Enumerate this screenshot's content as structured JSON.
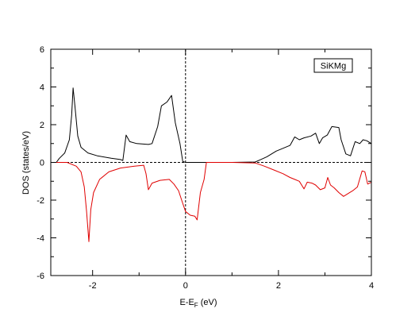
{
  "chart_data": {
    "type": "line",
    "title": "",
    "xlabel_main": "E-E",
    "xlabel_sub": "F",
    "xlabel_unit": " (eV)",
    "ylabel": "DOS (states/eV)",
    "xlim": [
      -2.9,
      4
    ],
    "ylim": [
      -6,
      6
    ],
    "xticks": [
      -2,
      0,
      2,
      4
    ],
    "xtick_labels": [
      "-2",
      "0",
      "2",
      "4"
    ],
    "yticks": [
      -6,
      -4,
      -2,
      0,
      2,
      4,
      6
    ],
    "ytick_labels": [
      "-6",
      "-4",
      "-2",
      "0",
      "2",
      "4",
      "6"
    ],
    "grid": false,
    "legend": {
      "text": "SiKMg",
      "placement": "top-right"
    },
    "reference_lines": {
      "x_zero": "dashed",
      "y_zero": "dashed"
    },
    "series": [
      {
        "color": "#000000",
        "points": [
          [
            -2.78,
            0.0
          ],
          [
            -2.72,
            0.2
          ],
          [
            -2.6,
            0.5
          ],
          [
            -2.5,
            1.2
          ],
          [
            -2.45,
            2.5
          ],
          [
            -2.42,
            3.95
          ],
          [
            -2.38,
            3.0
          ],
          [
            -2.32,
            1.4
          ],
          [
            -2.25,
            0.8
          ],
          [
            -2.1,
            0.5
          ],
          [
            -1.9,
            0.35
          ],
          [
            -1.6,
            0.22
          ],
          [
            -1.4,
            0.15
          ],
          [
            -1.35,
            0.1
          ],
          [
            -1.28,
            1.45
          ],
          [
            -1.2,
            1.1
          ],
          [
            -1.05,
            1.0
          ],
          [
            -0.8,
            0.95
          ],
          [
            -0.72,
            1.0
          ],
          [
            -0.6,
            1.9
          ],
          [
            -0.52,
            3.0
          ],
          [
            -0.4,
            3.2
          ],
          [
            -0.3,
            3.55
          ],
          [
            -0.22,
            2.1
          ],
          [
            -0.12,
            1.0
          ],
          [
            -0.06,
            0.05
          ],
          [
            0.0,
            0.0
          ],
          [
            0.5,
            0.0
          ],
          [
            1.0,
            0.0
          ],
          [
            1.5,
            0.02
          ],
          [
            1.62,
            0.15
          ],
          [
            1.75,
            0.3
          ],
          [
            1.95,
            0.6
          ],
          [
            2.1,
            0.75
          ],
          [
            2.25,
            0.9
          ],
          [
            2.35,
            1.35
          ],
          [
            2.45,
            1.2
          ],
          [
            2.55,
            1.3
          ],
          [
            2.7,
            1.4
          ],
          [
            2.8,
            1.55
          ],
          [
            2.88,
            1.0
          ],
          [
            2.95,
            1.3
          ],
          [
            3.05,
            1.45
          ],
          [
            3.15,
            1.9
          ],
          [
            3.3,
            1.85
          ],
          [
            3.35,
            1.2
          ],
          [
            3.45,
            0.45
          ],
          [
            3.55,
            0.35
          ],
          [
            3.65,
            1.1
          ],
          [
            3.75,
            1.0
          ],
          [
            3.82,
            1.2
          ],
          [
            3.9,
            1.15
          ],
          [
            4.0,
            1.0
          ]
        ]
      },
      {
        "color": "#e00000",
        "points": [
          [
            -2.8,
            0.0
          ],
          [
            -2.55,
            0.0
          ],
          [
            -2.35,
            -0.2
          ],
          [
            -2.25,
            -0.5
          ],
          [
            -2.18,
            -1.3
          ],
          [
            -2.13,
            -2.6
          ],
          [
            -2.08,
            -4.2
          ],
          [
            -2.04,
            -2.5
          ],
          [
            -1.98,
            -1.6
          ],
          [
            -1.85,
            -0.9
          ],
          [
            -1.65,
            -0.5
          ],
          [
            -1.4,
            -0.3
          ],
          [
            -1.1,
            -0.2
          ],
          [
            -0.9,
            -0.15
          ],
          [
            -0.85,
            -0.6
          ],
          [
            -0.8,
            -1.45
          ],
          [
            -0.72,
            -1.1
          ],
          [
            -0.55,
            -0.95
          ],
          [
            -0.35,
            -0.9
          ],
          [
            -0.25,
            -1.15
          ],
          [
            -0.15,
            -1.5
          ],
          [
            -0.07,
            -2.1
          ],
          [
            0.0,
            -2.6
          ],
          [
            0.1,
            -2.8
          ],
          [
            0.2,
            -2.85
          ],
          [
            0.25,
            -3.05
          ],
          [
            0.32,
            -1.6
          ],
          [
            0.4,
            -0.9
          ],
          [
            0.45,
            0.0
          ],
          [
            1.0,
            0.0
          ],
          [
            1.5,
            -0.03
          ],
          [
            1.7,
            -0.2
          ],
          [
            1.9,
            -0.4
          ],
          [
            2.1,
            -0.6
          ],
          [
            2.25,
            -0.8
          ],
          [
            2.35,
            -0.9
          ],
          [
            2.45,
            -1.0
          ],
          [
            2.55,
            -1.4
          ],
          [
            2.62,
            -1.05
          ],
          [
            2.72,
            -1.1
          ],
          [
            2.8,
            -1.2
          ],
          [
            2.9,
            -1.45
          ],
          [
            3.0,
            -1.35
          ],
          [
            3.06,
            -0.8
          ],
          [
            3.12,
            -1.2
          ],
          [
            3.2,
            -1.35
          ],
          [
            3.3,
            -1.6
          ],
          [
            3.4,
            -1.8
          ],
          [
            3.5,
            -1.65
          ],
          [
            3.6,
            -1.5
          ],
          [
            3.7,
            -1.3
          ],
          [
            3.8,
            -0.45
          ],
          [
            3.86,
            -0.5
          ],
          [
            3.92,
            -1.15
          ],
          [
            4.0,
            -1.05
          ]
        ]
      }
    ]
  }
}
